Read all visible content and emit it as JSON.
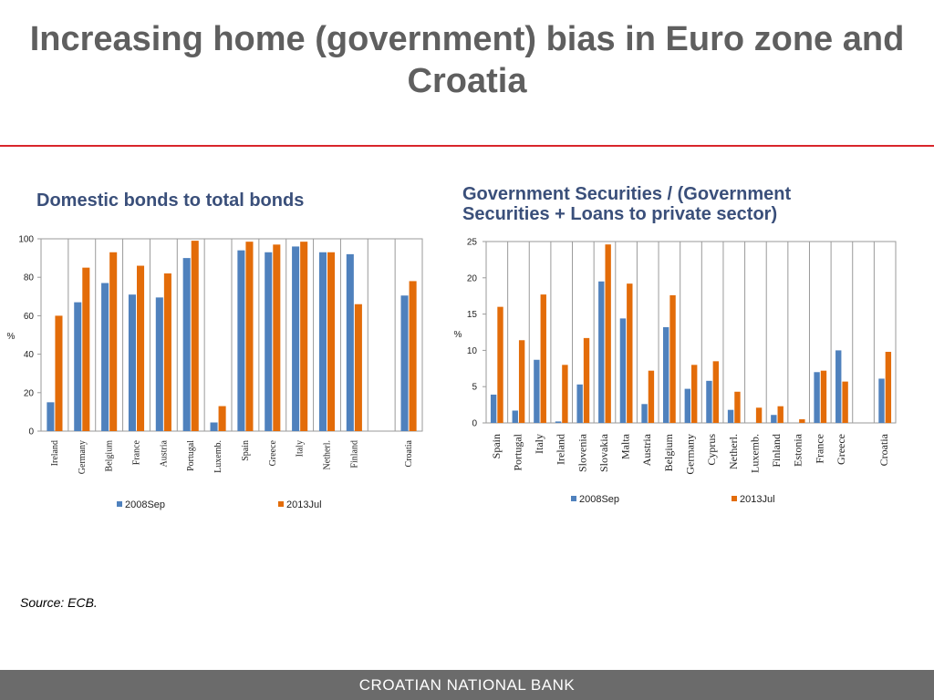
{
  "title": "Increasing home (government) bias in Euro zone and Croatia",
  "source": "Source: ECB.",
  "footer": "CROATIAN NATIONAL BANK",
  "colors": {
    "series1": "#4f81bd",
    "series2": "#e36c09",
    "rule": "#d9262b",
    "footer": "#6b6b6b",
    "heading": "#3a4f7a"
  },
  "chart_data": [
    {
      "type": "bar",
      "title": "Domestic bonds to total bonds",
      "ylabel": "%",
      "ylim": [
        0,
        100
      ],
      "yticks": [
        0,
        20,
        40,
        60,
        80,
        100
      ],
      "grid": "vertical category separators",
      "legend": "bottom",
      "categories": [
        "Ireland",
        "Germany",
        "Belgium",
        "France",
        "Austria",
        "Portugal",
        "Luxemb.",
        "Spain",
        "Greece",
        "Italy",
        "Netherl.",
        "Finland",
        "",
        "Croatia"
      ],
      "series": [
        {
          "name": "2008Sep",
          "values": [
            15,
            67,
            77,
            71,
            69.5,
            90,
            4.5,
            94,
            93,
            96,
            93,
            92,
            null,
            70.5
          ]
        },
        {
          "name": "2013Jul",
          "values": [
            60,
            85,
            93,
            86,
            82,
            99,
            13,
            98.5,
            97,
            98.5,
            93,
            66,
            null,
            78
          ]
        }
      ]
    },
    {
      "type": "bar",
      "title": "Government Securities / (Government Securities + Loans to private sector)",
      "ylabel": "%",
      "ylim": [
        0,
        25
      ],
      "yticks": [
        0,
        5,
        10,
        15,
        20,
        25
      ],
      "grid": "vertical category separators",
      "legend": "bottom",
      "categories": [
        "Spain",
        "Portugal",
        "Italy",
        "Ireland",
        "Slovenia",
        "Slovakia",
        "Malta",
        "Austria",
        "Belgium",
        "Germany",
        "Cyprus",
        "Netherl.",
        "Luxemb.",
        "Finland",
        "Estonia",
        "France",
        "Greece",
        "",
        "Croatia"
      ],
      "series": [
        {
          "name": "2008Sep",
          "values": [
            3.9,
            1.7,
            8.7,
            0.2,
            5.3,
            19.5,
            14.4,
            2.6,
            13.2,
            4.7,
            5.8,
            1.8,
            0,
            1.1,
            0,
            7.0,
            10.0,
            null,
            6.1
          ]
        },
        {
          "name": "2013Jul",
          "values": [
            16.0,
            11.4,
            17.7,
            8.0,
            11.7,
            24.6,
            19.2,
            7.2,
            17.6,
            8.0,
            8.5,
            4.3,
            2.1,
            2.3,
            0.5,
            7.2,
            5.7,
            null,
            9.8
          ]
        }
      ]
    }
  ]
}
